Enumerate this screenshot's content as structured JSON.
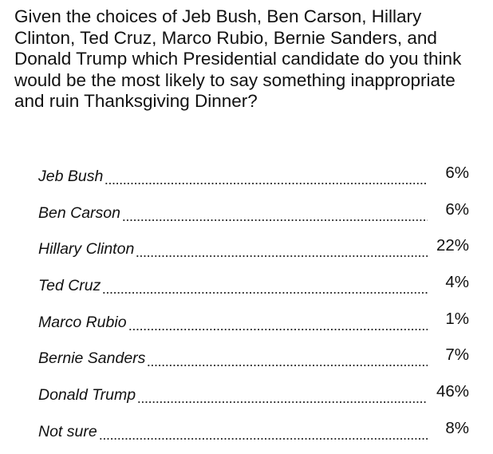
{
  "question": "Given the choices of Jeb Bush, Ben Carson, Hillary Clinton, Ted Cruz, Marco Rubio, Bernie Sanders, and Donald Trump which Presidential candidate do you think would be the most likely to say something inappropriate and ruin Thanksgiving Dinner?",
  "results": [
    {
      "candidate": "Jeb Bush",
      "percent": "6%"
    },
    {
      "candidate": "Ben Carson",
      "percent": "6%"
    },
    {
      "candidate": "Hillary Clinton",
      "percent": "22%"
    },
    {
      "candidate": "Ted Cruz",
      "percent": "4%"
    },
    {
      "candidate": "Marco Rubio",
      "percent": "1%"
    },
    {
      "candidate": "Bernie Sanders",
      "percent": "7%"
    },
    {
      "candidate": "Donald Trump",
      "percent": "46%"
    },
    {
      "candidate": "Not sure",
      "percent": "8%"
    }
  ]
}
